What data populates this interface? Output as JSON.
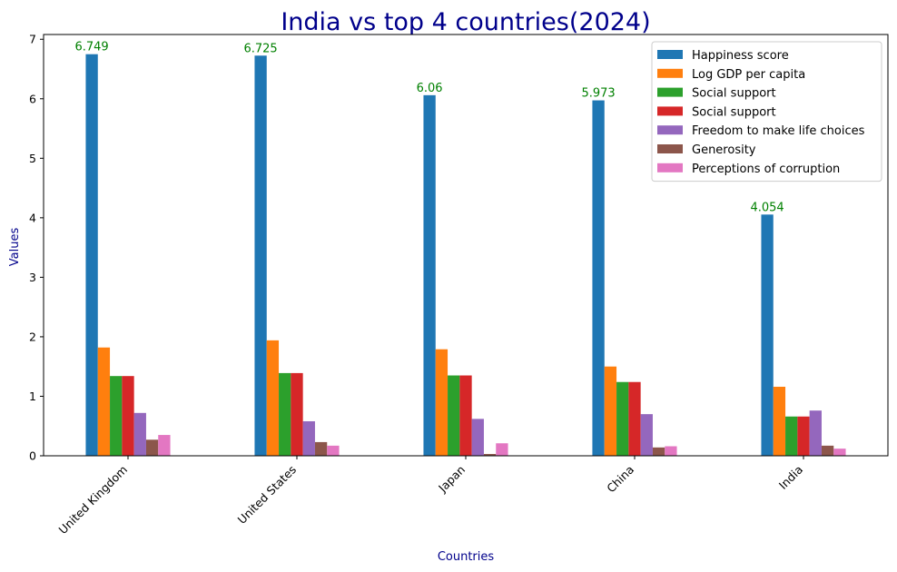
{
  "chart_data": {
    "type": "bar",
    "title": "India vs top 4 countries(2024)",
    "xlabel": "Countries",
    "ylabel": "Values",
    "ylim": [
      0,
      7.08
    ],
    "yticks": [
      0,
      1,
      2,
      3,
      4,
      5,
      6,
      7
    ],
    "categories": [
      "United Kingdom",
      "United States",
      "Japan",
      "China",
      "India"
    ],
    "series": [
      {
        "name": "Happiness score",
        "color": "#1f77b4",
        "values": [
          6.749,
          6.725,
          6.06,
          5.973,
          4.054
        ]
      },
      {
        "name": "Log GDP per capita",
        "color": "#ff7f0e",
        "values": [
          1.82,
          1.94,
          1.79,
          1.5,
          1.16
        ]
      },
      {
        "name": "Social support",
        "color": "#2ca02c",
        "values": [
          1.34,
          1.39,
          1.35,
          1.24,
          0.66
        ]
      },
      {
        "name": "Social support",
        "color": "#d62728",
        "values": [
          1.34,
          1.39,
          1.35,
          1.24,
          0.66
        ]
      },
      {
        "name": "Freedom to make life choices",
        "color": "#9467bd",
        "values": [
          0.72,
          0.58,
          0.62,
          0.7,
          0.76
        ]
      },
      {
        "name": "Generosity",
        "color": "#8c564b",
        "values": [
          0.27,
          0.23,
          0.03,
          0.14,
          0.17
        ]
      },
      {
        "name": "Perceptions of corruption",
        "color": "#e377c2",
        "values": [
          0.35,
          0.17,
          0.21,
          0.16,
          0.12
        ]
      }
    ],
    "data_labels": [
      "6.749",
      "6.725",
      "6.06",
      "5.973",
      "4.054"
    ],
    "legend_position": "top-right",
    "grid": false,
    "title_color": "#00008b",
    "axis_label_color": "#00008b",
    "data_label_color": "#008000"
  }
}
